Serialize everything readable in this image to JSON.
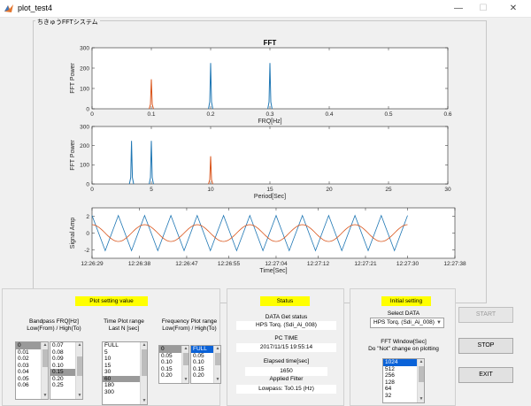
{
  "window": {
    "title": "plot_test4",
    "minimize": "—",
    "maximize": "☐",
    "close": "✕"
  },
  "app": {
    "frame_title": "ちきゅうFFTシステム"
  },
  "colors": {
    "blue_series": "#1f77b4",
    "orange_series": "#d95319",
    "highlight": "#ffff00"
  },
  "chart_data": [
    {
      "type": "line",
      "title": "FFT",
      "xlabel": "FRQ[Hz]",
      "ylabel": "FFT Power",
      "xlim": [
        0,
        0.6
      ],
      "ylim": [
        0,
        300
      ],
      "xticks": [
        0,
        0.1,
        0.2,
        0.3,
        0.4,
        0.5,
        0.6
      ],
      "xtick_labels": [
        "0",
        "0.1",
        "0.2",
        "0.3",
        "0.4",
        "0.5",
        "0.6"
      ],
      "yticks": [
        0,
        100,
        200,
        300
      ],
      "ytick_labels": [
        "0",
        "100",
        "200",
        "300"
      ],
      "series": [
        {
          "color": "#1f77b4",
          "peaks": [
            {
              "x": 0.2,
              "y": 225
            },
            {
              "x": 0.3,
              "y": 225
            }
          ]
        },
        {
          "color": "#d95319",
          "peaks": [
            {
              "x": 0.1,
              "y": 145
            }
          ]
        }
      ]
    },
    {
      "type": "line",
      "xlabel": "Period[Sec]",
      "ylabel": "FFT Power",
      "xlim": [
        0,
        30
      ],
      "ylim": [
        0,
        300
      ],
      "xticks": [
        0,
        5,
        10,
        15,
        20,
        25,
        30
      ],
      "xtick_labels": [
        "0",
        "5",
        "10",
        "15",
        "20",
        "25",
        "30"
      ],
      "yticks": [
        0,
        100,
        200,
        300
      ],
      "ytick_labels": [
        "0",
        "100",
        "200",
        "300"
      ],
      "series": [
        {
          "color": "#1f77b4",
          "peaks": [
            {
              "x": 3.33,
              "y": 225
            },
            {
              "x": 5,
              "y": 225
            }
          ]
        },
        {
          "color": "#d95319",
          "peaks": [
            {
              "x": 10,
              "y": 145
            }
          ]
        }
      ]
    },
    {
      "type": "line",
      "xlabel": "Time[Sec]",
      "ylabel": "Signal Amp",
      "xlim": [
        0,
        69
      ],
      "ylim": [
        -3,
        3
      ],
      "xticks": [
        0,
        9,
        18,
        26,
        35,
        43,
        52,
        60,
        69
      ],
      "xtick_labels": [
        "12:26:29",
        "12:26:38",
        "12:26:47",
        "12:26:55",
        "12:27:04",
        "12:27:12",
        "12:27:21",
        "12:27:30",
        "12:27:38"
      ],
      "yticks": [
        -2,
        0,
        2
      ],
      "ytick_labels": [
        "-2",
        "0",
        "2"
      ],
      "series": [
        {
          "color": "#1f77b4",
          "kind": "triangle",
          "period_sec": 5,
          "amplitude": 2.1,
          "x_end": 60
        },
        {
          "color": "#d95319",
          "kind": "sine",
          "period_sec": 10,
          "amplitude": 1.0,
          "x_end": 60
        }
      ]
    }
  ],
  "plot_setting": {
    "title": "Plot setting value",
    "bandpass_label": [
      "Bandpass FRQ[Hz]",
      "Low(From) / High(To)"
    ],
    "bandpass_low": [
      "0",
      "0.01",
      "0.02",
      "0.03",
      "0.04",
      "0.05",
      "0.06"
    ],
    "bandpass_high": [
      "0.07",
      "0.08",
      "0.09",
      "0.10",
      "0.15",
      "0.20",
      "0.25"
    ],
    "time_range_label": [
      "Time Plot range",
      "Last N [sec]"
    ],
    "time_range": [
      "FULL",
      "5",
      "10",
      "15",
      "30",
      "60",
      "180",
      "300"
    ],
    "freq_range_label": [
      "Frequency Plot range",
      "Low(From) / High(To)"
    ],
    "freq_low": [
      "0",
      "0.05",
      "0.10",
      "0.15",
      "0.20"
    ],
    "freq_high": [
      "FULL",
      "0.05",
      "0.10",
      "0.15",
      "0.20"
    ]
  },
  "status": {
    "title": "Status",
    "data_get_label": "DATA Get status",
    "data_get_value": "HPS Torq. (Sdi_Ai_008)",
    "pc_time_label": "PC TIME",
    "pc_time_value": "2017/11/15 19:55:14",
    "elapsed_label": "Elapsed time[sec]",
    "elapsed_value": "1650",
    "filter_label": "Applied Filter",
    "filter_value": "Lowpass:   To0.15  (Hz)"
  },
  "initial_setting": {
    "title": "Initial setting",
    "select_data_label": "Select DATA",
    "select_data_value": "HPS Torq. (Sdi_Ai_008)",
    "fft_window_label": [
      "FFT Window[Sec]",
      "Do \"Not\" change on plotting"
    ],
    "fft_window": [
      "1024",
      "512",
      "256",
      "128",
      "64",
      "32"
    ]
  },
  "buttons": {
    "start": "START",
    "stop": "STOP",
    "exit": "EXIT"
  }
}
